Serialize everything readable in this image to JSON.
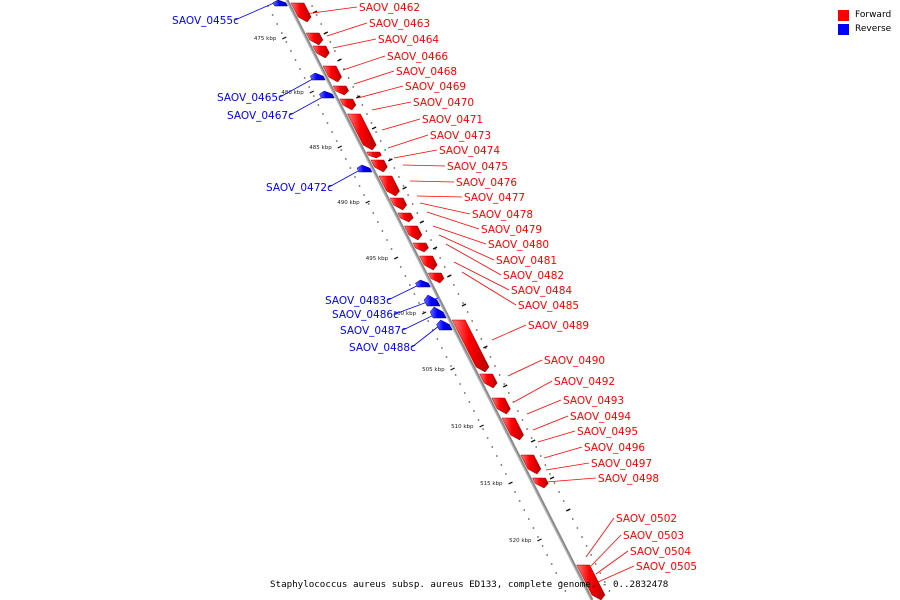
{
  "legend": {
    "forward_label": "Forward",
    "reverse_label": "Reverse",
    "forward_color": "#ff0000",
    "reverse_color": "#0000ff"
  },
  "caption": "Staphylococcus aureus subsp. aureus ED133, complete genome. - 0..2832478",
  "ticks": [
    "475 kbp",
    "480 kbp",
    "485 kbp",
    "490 kbp",
    "495 kbp",
    "500 kbp",
    "505 kbp",
    "510 kbp",
    "515 kbp",
    "520 kbp"
  ],
  "reverse_labels": [
    "SAOV_0455c",
    "SAOV_0465c",
    "SAOV_0467c",
    "SAOV_0472c",
    "SAOV_0483c",
    "SAOV_0486c",
    "SAOV_0487c",
    "SAOV_0488c"
  ],
  "forward_labels": [
    "SAOV_0462",
    "SAOV_0463",
    "SAOV_0464",
    "SAOV_0466",
    "SAOV_0468",
    "SAOV_0469",
    "SAOV_0470",
    "SAOV_0471",
    "SAOV_0473",
    "SAOV_0474",
    "SAOV_0475",
    "SAOV_0476",
    "SAOV_0477",
    "SAOV_0478",
    "SAOV_0479",
    "SAOV_0480",
    "SAOV_0481",
    "SAOV_0482",
    "SAOV_0484",
    "SAOV_0485",
    "SAOV_0489",
    "SAOV_0490",
    "SAOV_0492",
    "SAOV_0493",
    "SAOV_0494",
    "SAOV_0495",
    "SAOV_0496",
    "SAOV_0497",
    "SAOV_0498",
    "SAOV_0502",
    "SAOV_0503",
    "SAOV_0504",
    "SAOV_0505"
  ]
}
